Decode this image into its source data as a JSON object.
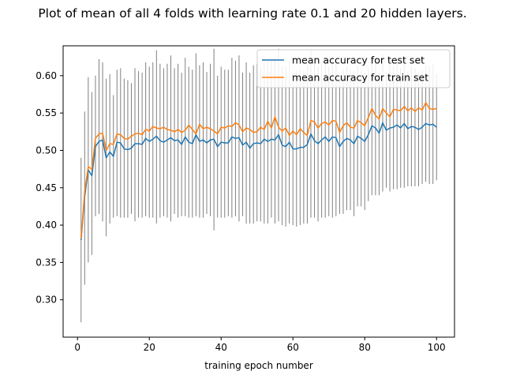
{
  "chart_data": {
    "type": "line",
    "title": "Plot of mean of all 4 folds with learning rate 0.1 and 20 hidden layers.",
    "xlabel": "training epoch number",
    "ylabel": "",
    "xlim": [
      -4,
      105
    ],
    "ylim": [
      0.25,
      0.64
    ],
    "x_ticks": [
      0,
      20,
      40,
      60,
      80,
      100
    ],
    "x_tick_labels": [
      "0",
      "20",
      "40",
      "60",
      "80",
      "100"
    ],
    "y_ticks": [
      0.3,
      0.35,
      0.4,
      0.45,
      0.5,
      0.55,
      0.6
    ],
    "y_tick_labels": [
      "0.30",
      "0.35",
      "0.40",
      "0.45",
      "0.50",
      "0.55",
      "0.60"
    ],
    "legend_position": "top-right",
    "grid": false,
    "x": [
      1,
      2,
      3,
      4,
      5,
      6,
      7,
      8,
      9,
      10,
      11,
      12,
      13,
      14,
      15,
      16,
      17,
      18,
      19,
      20,
      21,
      22,
      23,
      24,
      25,
      26,
      27,
      28,
      29,
      30,
      31,
      32,
      33,
      34,
      35,
      36,
      37,
      38,
      39,
      40,
      41,
      42,
      43,
      44,
      45,
      46,
      47,
      48,
      49,
      50,
      51,
      52,
      53,
      54,
      55,
      56,
      57,
      58,
      59,
      60,
      61,
      62,
      63,
      64,
      65,
      66,
      67,
      68,
      69,
      70,
      71,
      72,
      73,
      74,
      75,
      76,
      77,
      78,
      79,
      80,
      81,
      82,
      83,
      84,
      85,
      86,
      87,
      88,
      89,
      90,
      91,
      92,
      93,
      94,
      95,
      96,
      97,
      98,
      99,
      100
    ],
    "series": [
      {
        "name": "mean accuracy for test set",
        "color": "#1f77b4",
        "values": [
          0.38,
          0.438,
          0.474,
          0.466,
          0.505,
          0.512,
          0.514,
          0.49,
          0.498,
          0.492,
          0.511,
          0.51,
          0.502,
          0.501,
          0.503,
          0.509,
          0.509,
          0.508,
          0.516,
          0.512,
          0.515,
          0.519,
          0.513,
          0.511,
          0.514,
          0.517,
          0.513,
          0.514,
          0.508,
          0.518,
          0.511,
          0.509,
          0.521,
          0.512,
          0.514,
          0.51,
          0.514,
          0.515,
          0.505,
          0.511,
          0.51,
          0.51,
          0.518,
          0.516,
          0.517,
          0.507,
          0.511,
          0.503,
          0.509,
          0.51,
          0.509,
          0.515,
          0.512,
          0.515,
          0.514,
          0.521,
          0.507,
          0.505,
          0.511,
          0.502,
          0.502,
          0.504,
          0.504,
          0.508,
          0.522,
          0.513,
          0.509,
          0.514,
          0.518,
          0.512,
          0.518,
          0.517,
          0.505,
          0.512,
          0.516,
          0.514,
          0.509,
          0.519,
          0.516,
          0.512,
          0.521,
          0.533,
          0.53,
          0.523,
          0.537,
          0.527,
          0.53,
          0.531,
          0.534,
          0.53,
          0.536,
          0.529,
          0.532,
          0.531,
          0.528,
          0.531,
          0.536,
          0.534,
          0.535,
          0.531
        ]
      },
      {
        "name": "mean accuracy for train set",
        "color": "#ff7f0e",
        "values": [
          0.382,
          0.445,
          0.478,
          0.475,
          0.516,
          0.522,
          0.523,
          0.5,
          0.509,
          0.508,
          0.522,
          0.521,
          0.516,
          0.515,
          0.519,
          0.522,
          0.523,
          0.521,
          0.528,
          0.526,
          0.532,
          0.53,
          0.529,
          0.531,
          0.528,
          0.527,
          0.525,
          0.528,
          0.524,
          0.527,
          0.534,
          0.528,
          0.522,
          0.535,
          0.529,
          0.531,
          0.529,
          0.526,
          0.522,
          0.531,
          0.53,
          0.533,
          0.532,
          0.537,
          0.534,
          0.525,
          0.53,
          0.528,
          0.524,
          0.525,
          0.531,
          0.528,
          0.539,
          0.53,
          0.545,
          0.531,
          0.526,
          0.53,
          0.52,
          0.526,
          0.521,
          0.529,
          0.524,
          0.52,
          0.54,
          0.538,
          0.53,
          0.536,
          0.538,
          0.534,
          0.54,
          0.539,
          0.524,
          0.533,
          0.537,
          0.531,
          0.53,
          0.54,
          0.537,
          0.533,
          0.544,
          0.556,
          0.547,
          0.542,
          0.556,
          0.55,
          0.545,
          0.555,
          0.554,
          0.553,
          0.559,
          0.553,
          0.557,
          0.552,
          0.557,
          0.554,
          0.564,
          0.556,
          0.555,
          0.556
        ]
      }
    ],
    "error_bars": {
      "color": "#808080",
      "lower": [
        0.27,
        0.32,
        0.35,
        0.36,
        0.412,
        0.415,
        0.405,
        0.385,
        0.402,
        0.41,
        0.412,
        0.41,
        0.41,
        0.41,
        0.415,
        0.405,
        0.41,
        0.41,
        0.412,
        0.41,
        0.41,
        0.402,
        0.41,
        0.412,
        0.41,
        0.405,
        0.415,
        0.41,
        0.412,
        0.412,
        0.41,
        0.41,
        0.412,
        0.41,
        0.41,
        0.415,
        0.412,
        0.393,
        0.41,
        0.41,
        0.41,
        0.412,
        0.41,
        0.412,
        0.405,
        0.412,
        0.402,
        0.402,
        0.402,
        0.405,
        0.405,
        0.402,
        0.402,
        0.41,
        0.402,
        0.405,
        0.4,
        0.398,
        0.402,
        0.4,
        0.398,
        0.4,
        0.402,
        0.402,
        0.41,
        0.41,
        0.405,
        0.41,
        0.41,
        0.412,
        0.41,
        0.412,
        0.415,
        0.415,
        0.42,
        0.42,
        0.412,
        0.425,
        0.425,
        0.42,
        0.432,
        0.44,
        0.44,
        0.44,
        0.445,
        0.45,
        0.445,
        0.448,
        0.448,
        0.45,
        0.45,
        0.452,
        0.452,
        0.452,
        0.452,
        0.455,
        0.458,
        0.455,
        0.455,
        0.46
      ],
      "upper": [
        0.49,
        0.552,
        0.598,
        0.578,
        0.6,
        0.622,
        0.618,
        0.596,
        0.602,
        0.574,
        0.608,
        0.61,
        0.596,
        0.594,
        0.59,
        0.61,
        0.606,
        0.604,
        0.618,
        0.612,
        0.618,
        0.634,
        0.616,
        0.61,
        0.616,
        0.627,
        0.61,
        0.616,
        0.604,
        0.624,
        0.612,
        0.608,
        0.63,
        0.614,
        0.618,
        0.605,
        0.616,
        0.636,
        0.6,
        0.612,
        0.608,
        0.608,
        0.624,
        0.62,
        0.627,
        0.604,
        0.618,
        0.604,
        0.614,
        0.616,
        0.612,
        0.626,
        0.62,
        0.62,
        0.624,
        0.636,
        0.612,
        0.612,
        0.62,
        0.604,
        0.606,
        0.608,
        0.606,
        0.614,
        0.634,
        0.616,
        0.612,
        0.618,
        0.626,
        0.612,
        0.626,
        0.622,
        0.596,
        0.609,
        0.612,
        0.608,
        0.606,
        0.613,
        0.606,
        0.604,
        0.61,
        0.626,
        0.62,
        0.606,
        0.628,
        0.604,
        0.615,
        0.614,
        0.62,
        0.61,
        0.622,
        0.606,
        0.612,
        0.61,
        0.604,
        0.607,
        0.614,
        0.613,
        0.615,
        0.602
      ]
    }
  }
}
